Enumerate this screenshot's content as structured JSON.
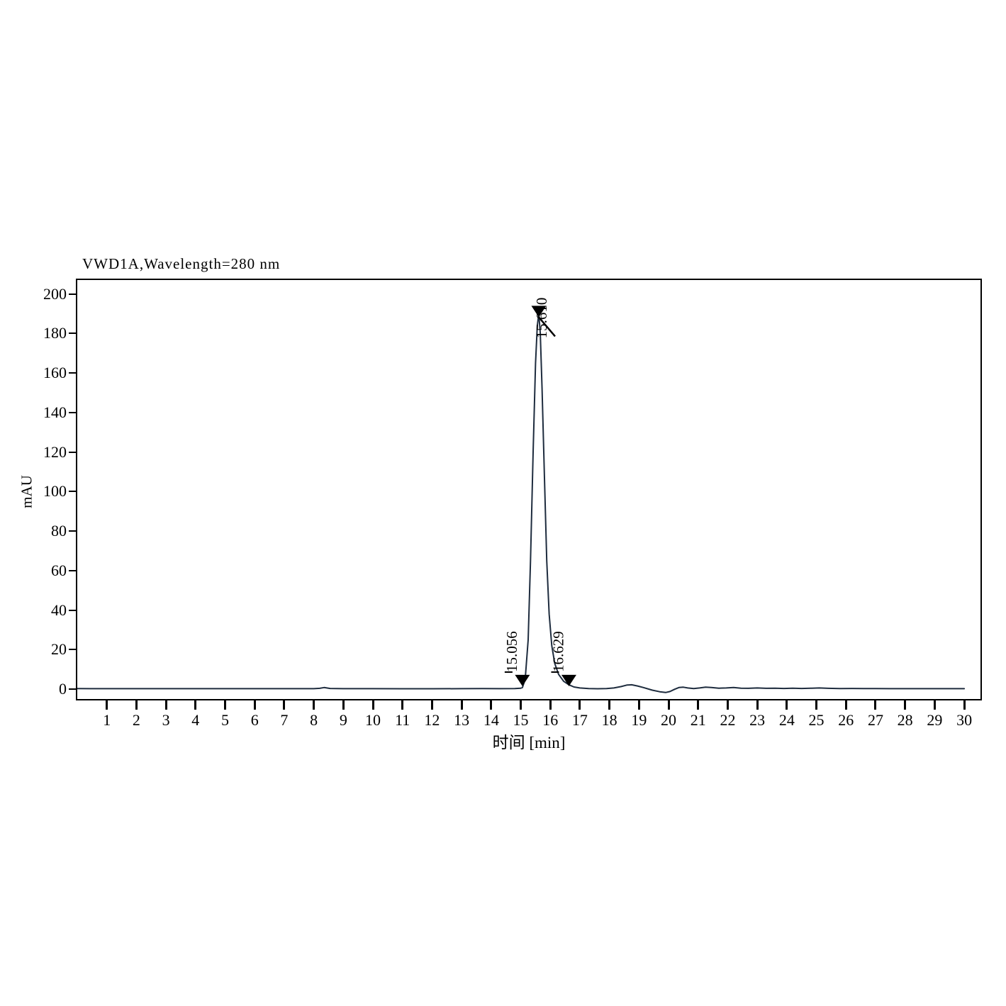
{
  "title": "VWD1A,Wavelength=280 nm",
  "y_axis": {
    "label": "mAU",
    "ticks": [
      0,
      20,
      40,
      60,
      80,
      100,
      120,
      140,
      160,
      180,
      200
    ]
  },
  "x_axis": {
    "label": "时间 [min]",
    "ticks": [
      1,
      2,
      3,
      4,
      5,
      6,
      7,
      8,
      9,
      10,
      11,
      12,
      13,
      14,
      15,
      16,
      17,
      18,
      19,
      20,
      21,
      22,
      23,
      24,
      25,
      26,
      27,
      28,
      29,
      30
    ]
  },
  "annotations": {
    "peak_label": "15.610",
    "start_label": "15.056",
    "end_label": "16.629"
  },
  "colors": {
    "trace": "#1e2c3e",
    "axis": "#000000",
    "marker": "#000000",
    "background": "#ffffff"
  },
  "chart_data": {
    "type": "line",
    "title": "VWD1A,Wavelength=280 nm",
    "xlabel": "时间 [min]",
    "ylabel": "mAU",
    "xlim": [
      0,
      30.55
    ],
    "ylim": [
      -5,
      207
    ],
    "grid": false,
    "legend": "none",
    "peaks": [
      {
        "rt": 15.61,
        "height_mau": 190,
        "start_rt": 15.056,
        "end_rt": 16.629
      }
    ],
    "series": [
      {
        "name": "VWD1A, Wavelength=280 nm",
        "points": [
          [
            0,
            0.3
          ],
          [
            0.5,
            0.25
          ],
          [
            1,
            0.25
          ],
          [
            2,
            0.25
          ],
          [
            3,
            0.25
          ],
          [
            4,
            0.25
          ],
          [
            5,
            0.25
          ],
          [
            6,
            0.25
          ],
          [
            7,
            0.25
          ],
          [
            8,
            0.25
          ],
          [
            8.2,
            0.4
          ],
          [
            8.35,
            0.8
          ],
          [
            8.55,
            0.35
          ],
          [
            9,
            0.25
          ],
          [
            10,
            0.25
          ],
          [
            11,
            0.2
          ],
          [
            12,
            0.2
          ],
          [
            13,
            0.25
          ],
          [
            13.7,
            0.3
          ],
          [
            14.3,
            0.25
          ],
          [
            14.8,
            0.3
          ],
          [
            15.0,
            0.5
          ],
          [
            15.056,
            0.8
          ],
          [
            15.15,
            5
          ],
          [
            15.25,
            25
          ],
          [
            15.33,
            65
          ],
          [
            15.42,
            120
          ],
          [
            15.5,
            165
          ],
          [
            15.56,
            184
          ],
          [
            15.61,
            190
          ],
          [
            15.66,
            180
          ],
          [
            15.72,
            152
          ],
          [
            15.8,
            108
          ],
          [
            15.88,
            65
          ],
          [
            15.96,
            38
          ],
          [
            16.05,
            22
          ],
          [
            16.15,
            13
          ],
          [
            16.28,
            7.5
          ],
          [
            16.45,
            4
          ],
          [
            16.629,
            2.2
          ],
          [
            16.8,
            1.1
          ],
          [
            17.0,
            0.6
          ],
          [
            17.3,
            0.3
          ],
          [
            17.6,
            0.2
          ],
          [
            17.9,
            0.3
          ],
          [
            18.15,
            0.6
          ],
          [
            18.4,
            1.3
          ],
          [
            18.6,
            2.1
          ],
          [
            18.75,
            2.2
          ],
          [
            18.95,
            1.6
          ],
          [
            19.15,
            0.8
          ],
          [
            19.45,
            -0.5
          ],
          [
            19.7,
            -1.3
          ],
          [
            19.9,
            -1.7
          ],
          [
            20.05,
            -1.2
          ],
          [
            20.2,
            -0.1
          ],
          [
            20.35,
            0.8
          ],
          [
            20.5,
            1.0
          ],
          [
            20.65,
            0.6
          ],
          [
            20.85,
            0.3
          ],
          [
            21.05,
            0.6
          ],
          [
            21.25,
            1.0
          ],
          [
            21.45,
            0.8
          ],
          [
            21.7,
            0.5
          ],
          [
            21.95,
            0.6
          ],
          [
            22.2,
            0.8
          ],
          [
            22.45,
            0.5
          ],
          [
            22.7,
            0.4
          ],
          [
            23.0,
            0.6
          ],
          [
            23.3,
            0.4
          ],
          [
            23.6,
            0.5
          ],
          [
            23.9,
            0.35
          ],
          [
            24.2,
            0.5
          ],
          [
            24.5,
            0.35
          ],
          [
            24.85,
            0.5
          ],
          [
            25.1,
            0.6
          ],
          [
            25.4,
            0.4
          ],
          [
            25.8,
            0.3
          ],
          [
            26.2,
            0.35
          ],
          [
            26.6,
            0.3
          ],
          [
            27.0,
            0.3
          ],
          [
            27.5,
            0.25
          ],
          [
            28.0,
            0.25
          ],
          [
            28.5,
            0.25
          ],
          [
            29.0,
            0.25
          ],
          [
            29.5,
            0.25
          ],
          [
            30.0,
            0.25
          ]
        ]
      }
    ]
  }
}
